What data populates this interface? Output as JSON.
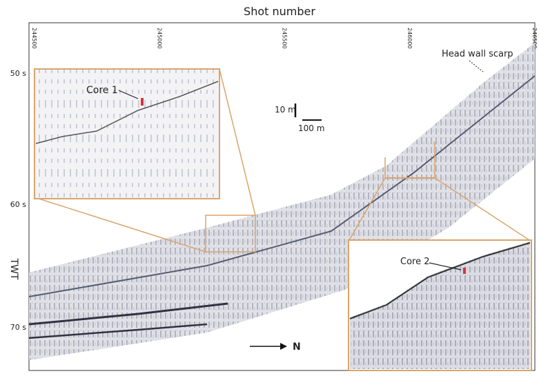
{
  "x_axis": {
    "title": "Shot number",
    "ticks": [
      "244500",
      "245000",
      "245500",
      "246000",
      "246500"
    ]
  },
  "y_axis": {
    "title": "TWT",
    "ticks": [
      "50 s",
      "60 s",
      "70 s"
    ]
  },
  "annotations": {
    "core_1": "Core 1",
    "core_2": "Core 2",
    "head_wall": "Head wall scarp",
    "vertical_scale": "10 m",
    "horizontal_scale": "100 m",
    "north": "N"
  }
}
